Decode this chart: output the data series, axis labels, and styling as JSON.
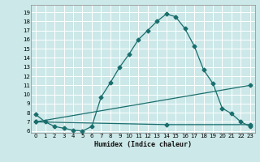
{
  "xlabel": "Humidex (Indice chaleur)",
  "bg_color": "#cce8e8",
  "grid_color": "#ffffff",
  "line_color": "#1a6e6e",
  "xlim": [
    -0.5,
    23.5
  ],
  "ylim": [
    5.8,
    19.8
  ],
  "yticks": [
    6,
    7,
    8,
    9,
    10,
    11,
    12,
    13,
    14,
    15,
    16,
    17,
    18,
    19
  ],
  "xticks": [
    0,
    1,
    2,
    3,
    4,
    5,
    6,
    7,
    8,
    9,
    10,
    11,
    12,
    13,
    14,
    15,
    16,
    17,
    18,
    19,
    20,
    21,
    22,
    23
  ],
  "curve1_x": [
    0,
    1,
    2,
    3,
    4,
    5,
    6,
    7,
    8,
    9,
    10,
    11,
    12,
    13,
    14,
    15,
    16,
    17,
    18,
    19,
    20,
    21,
    22,
    23
  ],
  "curve1_y": [
    7.8,
    7.0,
    6.5,
    6.3,
    6.1,
    6.0,
    6.5,
    9.7,
    11.3,
    13.0,
    14.4,
    16.0,
    17.0,
    18.0,
    18.8,
    18.5,
    17.2,
    15.3,
    12.7,
    11.2,
    8.5,
    7.9,
    7.0,
    6.5
  ],
  "curve2_x": [
    0,
    23
  ],
  "curve2_y": [
    7.0,
    11.0
  ],
  "curve3_x": [
    0,
    14,
    23
  ],
  "curve3_y": [
    7.0,
    6.7,
    6.7
  ],
  "markersize": 2.5
}
